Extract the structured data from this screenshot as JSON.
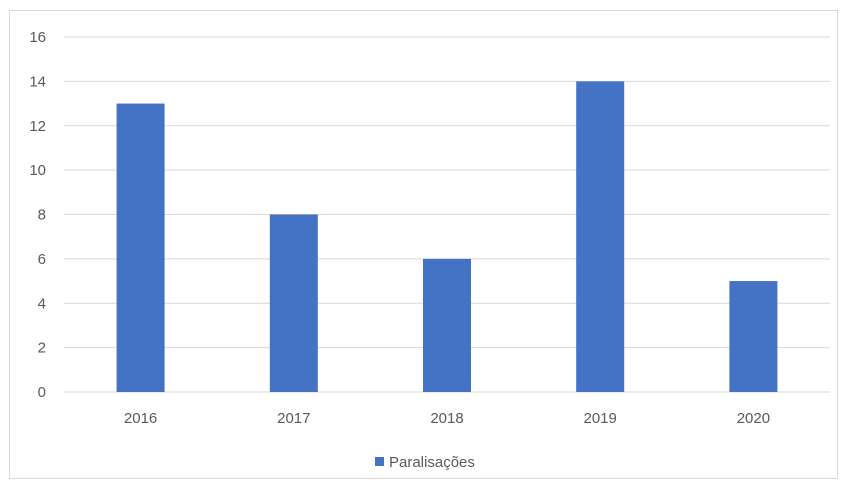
{
  "chart_data": {
    "type": "bar",
    "categories": [
      "2016",
      "2017",
      "2018",
      "2019",
      "2020"
    ],
    "series": [
      {
        "name": "Paralisações",
        "values": [
          13,
          8,
          6,
          14,
          5
        ],
        "color": "#4472c4"
      }
    ],
    "title": "",
    "xlabel": "",
    "ylabel": "",
    "ylim": [
      0,
      16
    ],
    "yticks": [
      0,
      2,
      4,
      6,
      8,
      10,
      12,
      14,
      16
    ],
    "grid": true,
    "legend_position": "bottom"
  },
  "colors": {
    "bar": "#4472c4",
    "grid": "#d9d9d9",
    "text": "#595959"
  }
}
